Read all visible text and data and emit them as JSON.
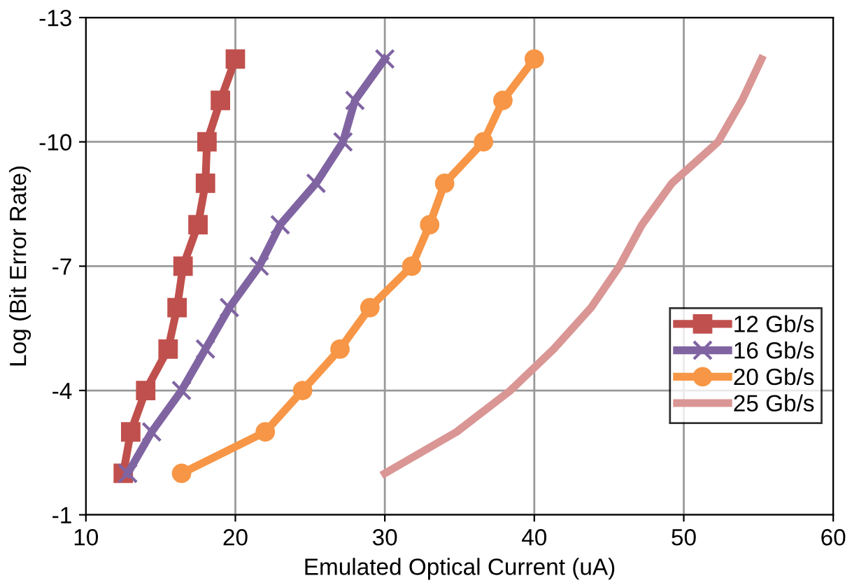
{
  "chart_data": {
    "type": "line",
    "xlabel": "Emulated Optical Current (uA)",
    "ylabel": "Log (Bit Error Rate)",
    "xlim": [
      10,
      60
    ],
    "xticks": [
      10,
      20,
      30,
      40,
      50,
      60
    ],
    "ylim": [
      -1,
      -13
    ],
    "yticks": [
      -1,
      -4,
      -7,
      -10,
      -13
    ],
    "grid": true,
    "legend": "right",
    "line_style": "solid",
    "series": [
      {
        "name": "12 Gb/s",
        "color": "#c0504d",
        "marker": "square",
        "x": [
          12.5,
          13.0,
          14.0,
          15.5,
          16.1,
          16.5,
          17.5,
          18.0,
          18.1,
          19.0,
          20.0
        ],
        "values": [
          -2,
          -3,
          -4,
          -5,
          -6,
          -7,
          -8,
          -9,
          -10,
          -11,
          -12
        ]
      },
      {
        "name": "16 Gb/s",
        "color": "#8064a2",
        "marker": "cross",
        "x": [
          12.8,
          14.4,
          16.4,
          18.0,
          19.6,
          21.6,
          23.0,
          25.4,
          27.2,
          28.0,
          30.0
        ],
        "values": [
          -2,
          -3,
          -4,
          -5,
          -6,
          -7,
          -8,
          -9,
          -10,
          -11,
          -12
        ]
      },
      {
        "name": "20 Gb/s",
        "color": "#f79646",
        "marker": "circle",
        "x": [
          16.4,
          22.0,
          24.5,
          27.0,
          29.0,
          31.8,
          33.0,
          34.0,
          36.6,
          37.9,
          40.0
        ],
        "values": [
          -2,
          -3,
          -4,
          -5,
          -6,
          -7,
          -8,
          -9,
          -10,
          -11,
          -12
        ]
      },
      {
        "name": "25 Gb/s",
        "color": "#d99694",
        "marker": "none",
        "x": [
          30.0,
          34.8,
          38.4,
          41.3,
          43.8,
          45.7,
          47.2,
          49.2,
          52.3,
          53.9,
          55.2
        ],
        "values": [
          -2,
          -3,
          -4,
          -5,
          -6,
          -7,
          -8,
          -9,
          -10,
          -11,
          -12
        ]
      }
    ]
  }
}
